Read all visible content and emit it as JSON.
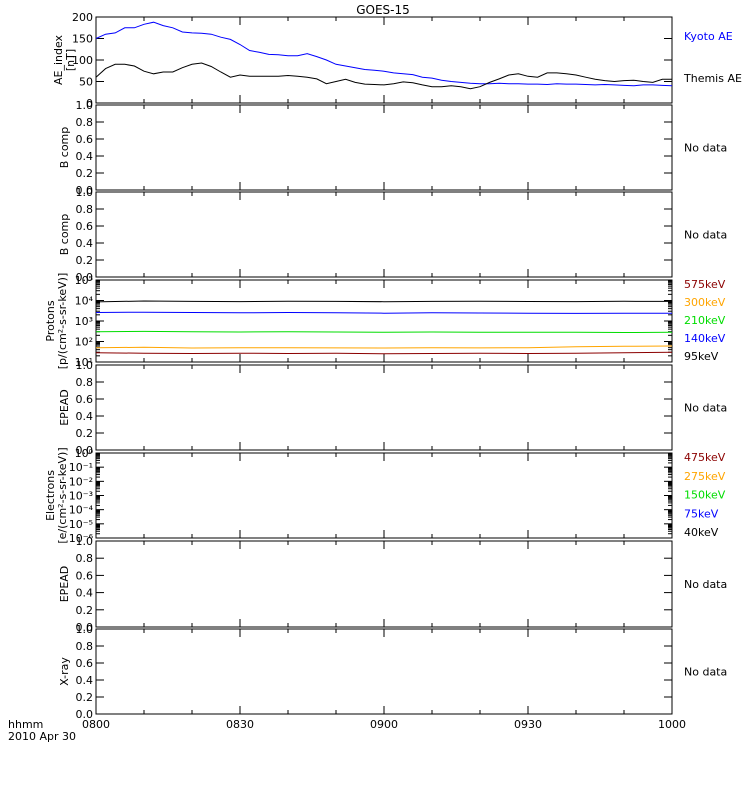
{
  "chart_data": {
    "title": "GOES-15",
    "x_axis": {
      "range": [
        "0800",
        "1000"
      ],
      "tick_labels": [
        "0800",
        "0830",
        "0900",
        "0930",
        "1000"
      ],
      "units_label": "hhmm",
      "date_label": "2010 Apr 30"
    },
    "panels": [
      {
        "type": "line",
        "ylabel": [
          "AE_index",
          "[nT]"
        ],
        "ylim": [
          0,
          200
        ],
        "yticks": [
          "0",
          "50",
          "100",
          "150",
          "200"
        ],
        "series": [
          {
            "name": "Kyoto AE",
            "color": "#0000ff",
            "points": [
              [
                0,
                150
              ],
              [
                2,
                160
              ],
              [
                4,
                163
              ],
              [
                6,
                175
              ],
              [
                8,
                175
              ],
              [
                10,
                183
              ],
              [
                12,
                188
              ],
              [
                14,
                180
              ],
              [
                16,
                175
              ],
              [
                18,
                165
              ],
              [
                20,
                163
              ],
              [
                22,
                162
              ],
              [
                24,
                160
              ],
              [
                26,
                153
              ],
              [
                28,
                148
              ],
              [
                30,
                136
              ],
              [
                32,
                122
              ],
              [
                34,
                118
              ],
              [
                36,
                113
              ],
              [
                38,
                112
              ],
              [
                40,
                110
              ],
              [
                42,
                110
              ],
              [
                44,
                115
              ],
              [
                46,
                108
              ],
              [
                48,
                100
              ],
              [
                50,
                90
              ],
              [
                52,
                86
              ],
              [
                54,
                82
              ],
              [
                56,
                78
              ],
              [
                58,
                76
              ],
              [
                60,
                74
              ],
              [
                62,
                70
              ],
              [
                64,
                68
              ],
              [
                66,
                66
              ],
              [
                68,
                60
              ],
              [
                70,
                58
              ],
              [
                72,
                53
              ],
              [
                74,
                50
              ],
              [
                76,
                48
              ],
              [
                78,
                46
              ],
              [
                80,
                45
              ],
              [
                82,
                45
              ],
              [
                84,
                46
              ],
              [
                86,
                45
              ],
              [
                88,
                45
              ],
              [
                90,
                44
              ],
              [
                92,
                44
              ],
              [
                94,
                43
              ],
              [
                96,
                45
              ],
              [
                98,
                44
              ],
              [
                100,
                44
              ],
              [
                102,
                43
              ],
              [
                104,
                42
              ],
              [
                106,
                43
              ],
              [
                108,
                42
              ],
              [
                110,
                41
              ],
              [
                112,
                40
              ],
              [
                114,
                42
              ],
              [
                116,
                42
              ],
              [
                118,
                41
              ],
              [
                120,
                40
              ]
            ]
          },
          {
            "name": "Themis AE",
            "color": "#000000",
            "points": [
              [
                0,
                60
              ],
              [
                2,
                80
              ],
              [
                4,
                90
              ],
              [
                6,
                90
              ],
              [
                8,
                86
              ],
              [
                10,
                74
              ],
              [
                12,
                68
              ],
              [
                14,
                72
              ],
              [
                16,
                72
              ],
              [
                18,
                82
              ],
              [
                20,
                90
              ],
              [
                22,
                93
              ],
              [
                24,
                85
              ],
              [
                26,
                72
              ],
              [
                28,
                60
              ],
              [
                30,
                65
              ],
              [
                32,
                62
              ],
              [
                34,
                62
              ],
              [
                36,
                62
              ],
              [
                38,
                62
              ],
              [
                40,
                64
              ],
              [
                42,
                62
              ],
              [
                44,
                60
              ],
              [
                46,
                56
              ],
              [
                48,
                45
              ],
              [
                50,
                50
              ],
              [
                52,
                55
              ],
              [
                54,
                48
              ],
              [
                56,
                44
              ],
              [
                58,
                43
              ],
              [
                60,
                42
              ],
              [
                62,
                45
              ],
              [
                64,
                49
              ],
              [
                66,
                47
              ],
              [
                68,
                42
              ],
              [
                70,
                38
              ],
              [
                72,
                38
              ],
              [
                74,
                40
              ],
              [
                76,
                38
              ],
              [
                78,
                33
              ],
              [
                80,
                38
              ],
              [
                82,
                48
              ],
              [
                84,
                56
              ],
              [
                86,
                65
              ],
              [
                88,
                68
              ],
              [
                90,
                62
              ],
              [
                92,
                60
              ],
              [
                94,
                70
              ],
              [
                96,
                70
              ],
              [
                98,
                68
              ],
              [
                100,
                65
              ],
              [
                102,
                60
              ],
              [
                104,
                55
              ],
              [
                106,
                52
              ],
              [
                108,
                50
              ],
              [
                110,
                52
              ],
              [
                112,
                53
              ],
              [
                114,
                50
              ],
              [
                116,
                48
              ],
              [
                118,
                55
              ],
              [
                120,
                55
              ]
            ]
          }
        ]
      },
      {
        "type": "line",
        "ylabel": [
          "B comp"
        ],
        "ylim": [
          0,
          1
        ],
        "yticks": [
          "0.0",
          "0.2",
          "0.4",
          "0.6",
          "0.8",
          "1.0"
        ],
        "series": [],
        "note": "No data"
      },
      {
        "type": "line",
        "ylabel": [
          "B comp"
        ],
        "ylim": [
          0,
          1
        ],
        "yticks": [
          "0.0",
          "0.2",
          "0.4",
          "0.6",
          "0.8",
          "1.0"
        ],
        "series": [],
        "note": "No data"
      },
      {
        "type": "line",
        "scale": "log",
        "ylabel": [
          "Protons",
          "[p/(cm²-s-sr-keV)]"
        ],
        "ylim": [
          10,
          100000
        ],
        "yticks": [
          "10¹",
          "10²",
          "10³",
          "10⁴",
          "10⁵"
        ],
        "legend_entries": [
          {
            "name": "575keV",
            "color": "#8b0000"
          },
          {
            "name": "300keV",
            "color": "#ffa500"
          },
          {
            "name": "210keV",
            "color": "#00dd00"
          },
          {
            "name": "140keV",
            "color": "#0000ff"
          },
          {
            "name": "95keV",
            "color": "#000000"
          }
        ],
        "series": [
          {
            "name": "95keV",
            "color": "#000000",
            "points": [
              [
                0,
                8500
              ],
              [
                10,
                9500
              ],
              [
                20,
                9000
              ],
              [
                30,
                8800
              ],
              [
                40,
                9200
              ],
              [
                50,
                9000
              ],
              [
                60,
                8700
              ],
              [
                70,
                9000
              ],
              [
                80,
                9200
              ],
              [
                90,
                8900
              ],
              [
                100,
                8800
              ],
              [
                110,
                9100
              ],
              [
                120,
                9000
              ]
            ]
          },
          {
            "name": "140keV",
            "color": "#0000ff",
            "points": [
              [
                0,
                2600
              ],
              [
                10,
                2700
              ],
              [
                20,
                2600
              ],
              [
                30,
                2500
              ],
              [
                40,
                2600
              ],
              [
                50,
                2500
              ],
              [
                60,
                2400
              ],
              [
                70,
                2500
              ],
              [
                80,
                2450
              ],
              [
                90,
                2400
              ],
              [
                100,
                2350
              ],
              [
                110,
                2400
              ],
              [
                120,
                2400
              ]
            ]
          },
          {
            "name": "210keV",
            "color": "#00dd00",
            "points": [
              [
                0,
                300
              ],
              [
                10,
                310
              ],
              [
                20,
                300
              ],
              [
                30,
                290
              ],
              [
                40,
                300
              ],
              [
                50,
                290
              ],
              [
                60,
                280
              ],
              [
                70,
                290
              ],
              [
                80,
                285
              ],
              [
                90,
                280
              ],
              [
                100,
                280
              ],
              [
                110,
                275
              ],
              [
                120,
                280
              ]
            ]
          },
          {
            "name": "300keV",
            "color": "#ffa500",
            "points": [
              [
                0,
                50
              ],
              [
                10,
                52
              ],
              [
                20,
                48
              ],
              [
                30,
                50
              ],
              [
                40,
                50
              ],
              [
                50,
                49
              ],
              [
                60,
                48
              ],
              [
                70,
                50
              ],
              [
                80,
                49
              ],
              [
                90,
                50
              ],
              [
                100,
                55
              ],
              [
                110,
                58
              ],
              [
                120,
                60
              ]
            ]
          },
          {
            "name": "575keV",
            "color": "#8b0000",
            "points": [
              [
                0,
                28
              ],
              [
                10,
                27
              ],
              [
                20,
                26
              ],
              [
                30,
                27
              ],
              [
                40,
                26
              ],
              [
                50,
                27
              ],
              [
                60,
                25
              ],
              [
                70,
                26
              ],
              [
                80,
                27
              ],
              [
                90,
                26
              ],
              [
                100,
                27
              ],
              [
                110,
                28
              ],
              [
                120,
                30
              ]
            ]
          }
        ]
      },
      {
        "type": "line",
        "ylabel": [
          "EPEAD"
        ],
        "ylim": [
          0,
          1
        ],
        "yticks": [
          "0.0",
          "0.2",
          "0.4",
          "0.6",
          "0.8",
          "1.0"
        ],
        "series": [],
        "note": "No data"
      },
      {
        "type": "line",
        "scale": "log",
        "ylabel": [
          "Electrons",
          "[e/(cm²-s-sr-keV)]"
        ],
        "ylim": [
          1e-06,
          1
        ],
        "yticks": [
          "10⁻⁶",
          "10⁻⁵",
          "10⁻⁴",
          "10⁻³",
          "10⁻²",
          "10⁻¹",
          "10⁰"
        ],
        "legend_entries": [
          {
            "name": "475keV",
            "color": "#8b0000"
          },
          {
            "name": "275keV",
            "color": "#ffa500"
          },
          {
            "name": "150keV",
            "color": "#00dd00"
          },
          {
            "name": "75keV",
            "color": "#0000ff"
          },
          {
            "name": "40keV",
            "color": "#000000"
          }
        ],
        "series": []
      },
      {
        "type": "line",
        "ylabel": [
          "EPEAD"
        ],
        "ylim": [
          0,
          1
        ],
        "yticks": [
          "0.0",
          "0.2",
          "0.4",
          "0.6",
          "0.8",
          "1.0"
        ],
        "series": [],
        "note": "No data"
      },
      {
        "type": "line",
        "ylabel": [
          "X-ray"
        ],
        "ylim": [
          0,
          1
        ],
        "yticks": [
          "0.0",
          "0.2",
          "0.4",
          "0.6",
          "0.8",
          "1.0"
        ],
        "series": [],
        "note": "No data"
      }
    ]
  }
}
